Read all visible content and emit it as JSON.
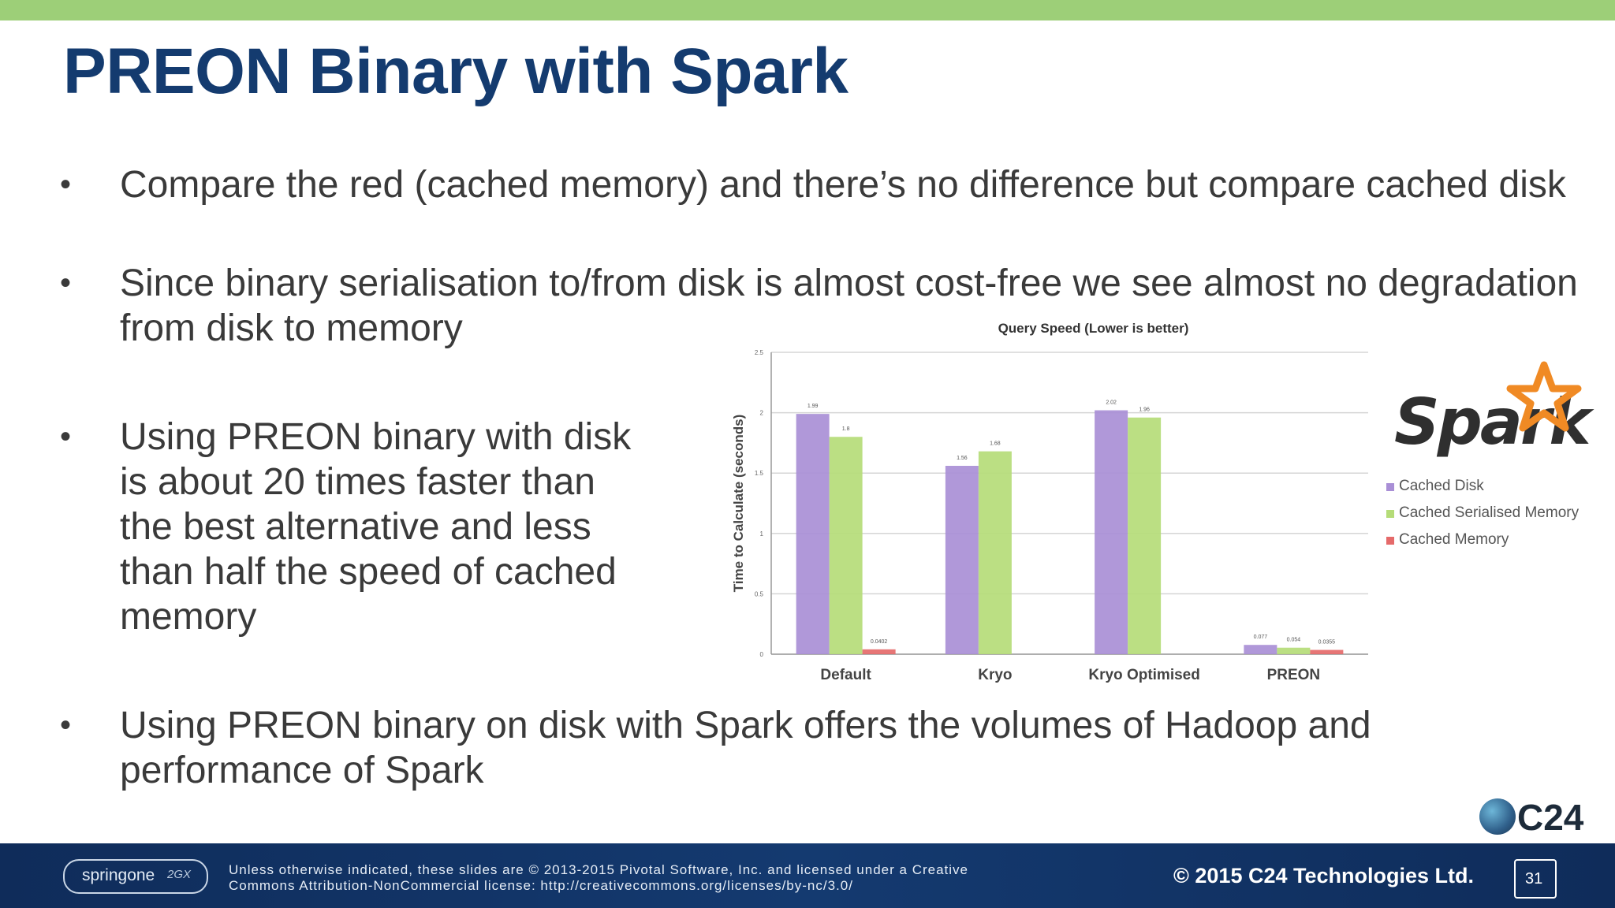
{
  "slide": {
    "title": "PREON Binary with Spark",
    "bullets": [
      "Compare the red (cached memory) and there’s no difference but compare cached disk",
      "Since binary serialisation to/from disk is almost cost-free we see almost no degradation from disk to memory",
      "Using PREON binary with disk is about 20 times faster than the best alternative and less than half the speed of cached memory",
      "Using PREON binary on disk with Spark offers the volumes of Hadoop and performance of Spark"
    ],
    "bullet_symbol": "•",
    "accent_color": "#9dcf78",
    "title_color": "#143b6f"
  },
  "logos": {
    "spark": "Spark",
    "c24": "C24",
    "springone": "springone",
    "springone_suffix": "2GX"
  },
  "footer": {
    "note": "Unless otherwise indicated, these slides are © 2013-2015 Pivotal Software, Inc. and licensed under a Creative Commons Attribution-NonCommercial license: http://creativecommons.org/licenses/by-nc/3.0/",
    "copyright": "© 2015 C24 Technologies Ltd.",
    "page_number": "31"
  },
  "chart_data": {
    "type": "bar",
    "title": "Query Speed (Lower is better)",
    "ylabel": "Time to Calculate (seconds)",
    "xlabel": "",
    "categories": [
      "Default",
      "Kryo",
      "Kryo Optimised",
      "PREON"
    ],
    "ylim": [
      0,
      2.5
    ],
    "yticks": [
      0,
      0.5,
      1,
      1.5,
      2,
      2.5
    ],
    "ytick_labels": [
      "0",
      "0.5",
      "1",
      "1.5",
      "2",
      "2.5"
    ],
    "grid": true,
    "legend_position": "right",
    "series": [
      {
        "name": "Cached Disk",
        "color": "#a98fd6",
        "values": [
          1.99,
          1.56,
          2.02,
          0.077
        ],
        "labels": [
          "1.99",
          "1.56",
          "2.02",
          "0.077"
        ]
      },
      {
        "name": "Cached Serialised Memory",
        "color": "#b5dc78",
        "values": [
          1.8,
          1.68,
          1.96,
          0.054
        ],
        "labels": [
          "1.8",
          "1.68",
          "1.96",
          "0.054"
        ]
      },
      {
        "name": "Cached Memory",
        "color": "#e56a6a",
        "values": [
          0.0402,
          0,
          0,
          0.0355
        ],
        "labels": [
          "0.0402",
          "",
          "",
          "0.0355"
        ]
      }
    ]
  }
}
